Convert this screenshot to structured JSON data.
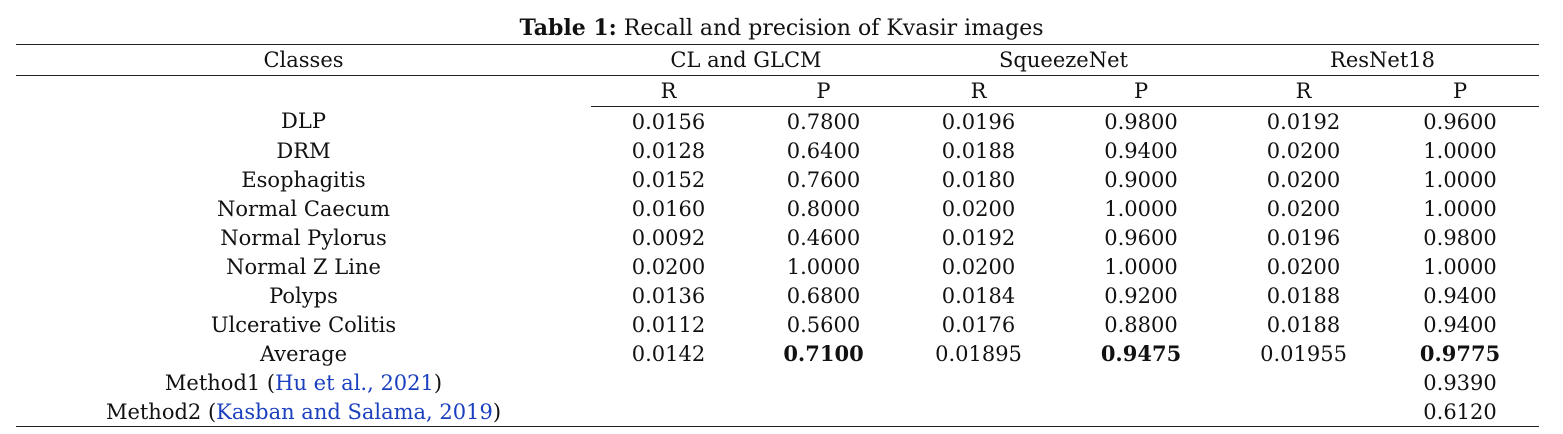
{
  "caption": {
    "label": "Table 1:",
    "text": "Recall and precision of Kvasir images"
  },
  "header": {
    "classes": "Classes",
    "groups": [
      "CL and GLCM",
      "SqueezeNet",
      "ResNet18"
    ],
    "sub": [
      "R",
      "P",
      "R",
      "P",
      "R",
      "P"
    ]
  },
  "rows": [
    {
      "label": "DLP",
      "cells": [
        "0.0156",
        "0.7800",
        "0.0196",
        "0.9800",
        "0.0192",
        "0.9600"
      ]
    },
    {
      "label": "DRM",
      "cells": [
        "0.0128",
        "0.6400",
        "0.0188",
        "0.9400",
        "0.0200",
        "1.0000"
      ]
    },
    {
      "label": "Esophagitis",
      "cells": [
        "0.0152",
        "0.7600",
        "0.0180",
        "0.9000",
        "0.0200",
        "1.0000"
      ]
    },
    {
      "label": "Normal Caecum",
      "cells": [
        "0.0160",
        "0.8000",
        "0.0200",
        "1.0000",
        "0.0200",
        "1.0000"
      ]
    },
    {
      "label": "Normal Pylorus",
      "cells": [
        "0.0092",
        "0.4600",
        "0.0192",
        "0.9600",
        "0.0196",
        "0.9800"
      ]
    },
    {
      "label": "Normal Z Line",
      "cells": [
        "0.0200",
        "1.0000",
        "0.0200",
        "1.0000",
        "0.0200",
        "1.0000"
      ]
    },
    {
      "label": "Polyps",
      "cells": [
        "0.0136",
        "0.6800",
        "0.0184",
        "0.9200",
        "0.0188",
        "0.9400"
      ]
    },
    {
      "label": "Ulcerative Colitis",
      "cells": [
        "0.0112",
        "0.5600",
        "0.0176",
        "0.8800",
        "0.0188",
        "0.9400"
      ]
    }
  ],
  "average": {
    "label": "Average",
    "cells": [
      "0.0142",
      "0.7100",
      "0.01895",
      "0.9475",
      "0.01955",
      "0.9775"
    ]
  },
  "methods": [
    {
      "prefix": "Method1 (",
      "cite": "Hu et al., 2021",
      "suffix": ")",
      "value": "0.9390"
    },
    {
      "prefix": "Method2 (",
      "cite": "Kasban and Salama, 2019",
      "suffix": ")",
      "value": "0.6120"
    }
  ],
  "colors": {
    "text": "#111111",
    "citation": "#1a3fbf",
    "rule": "#222222"
  }
}
